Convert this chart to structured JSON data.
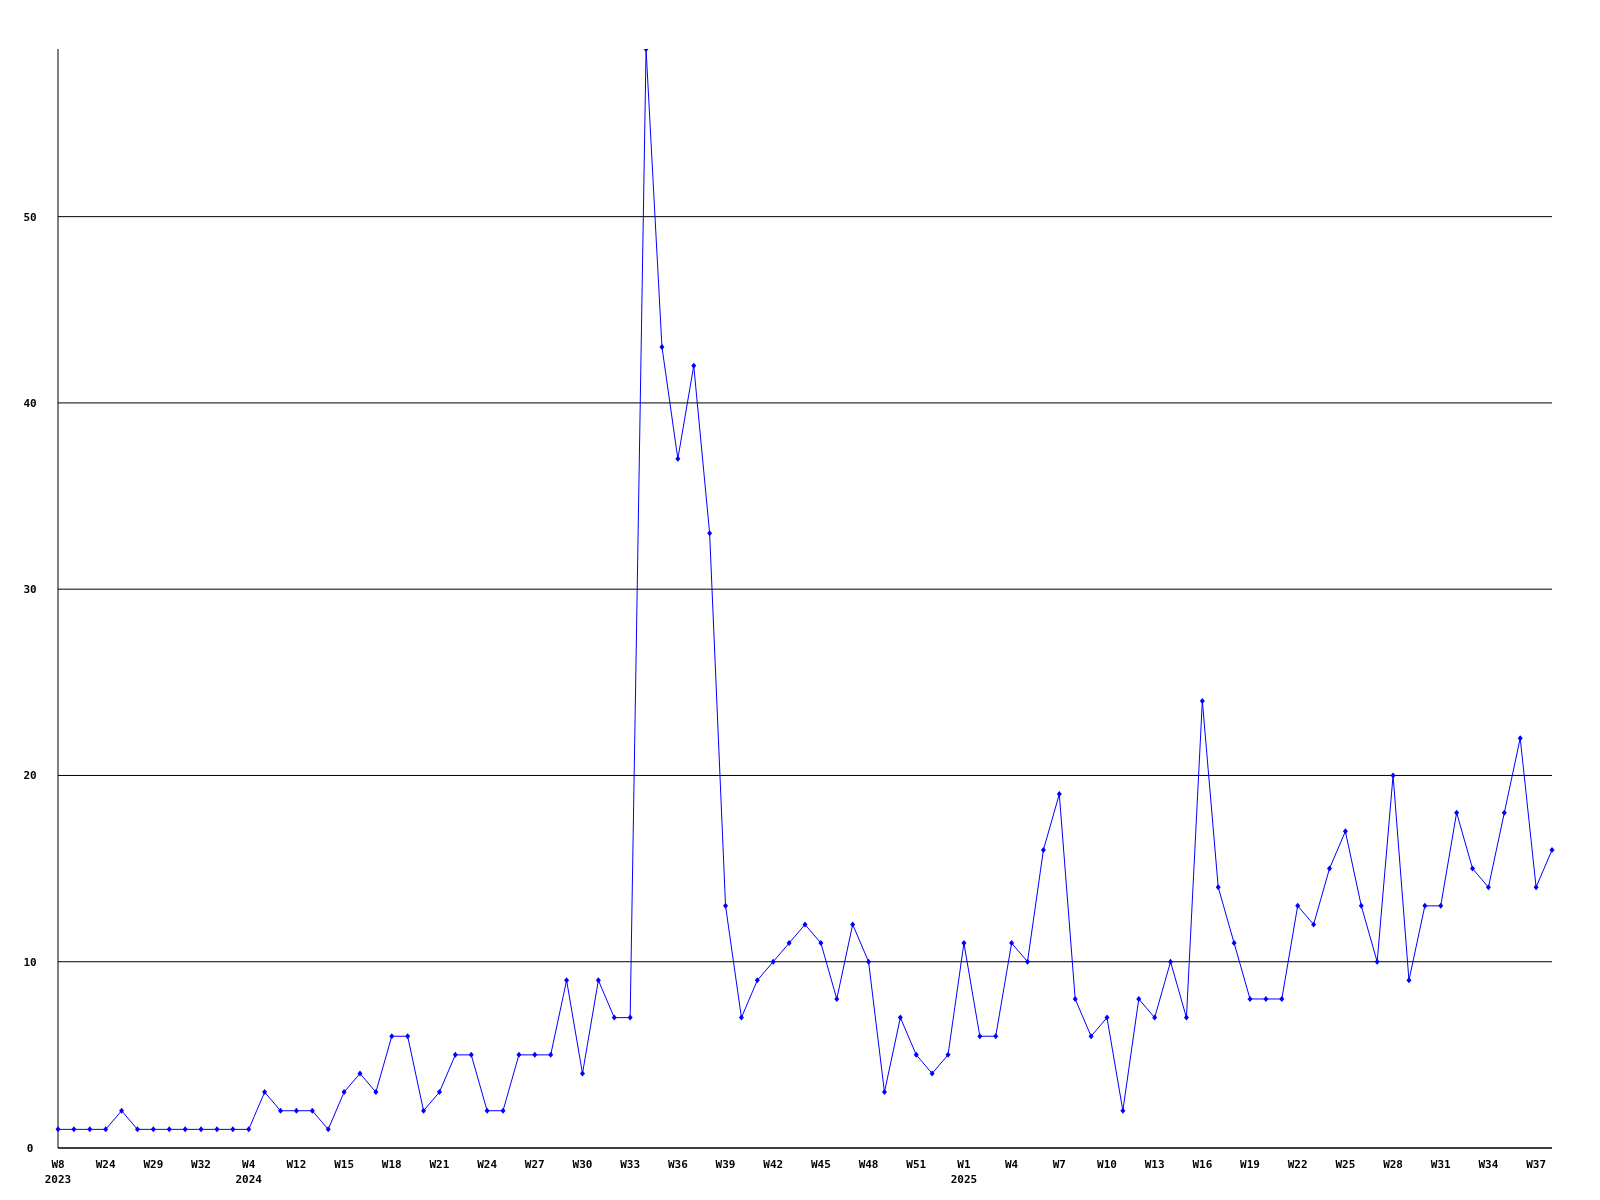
{
  "chart_data": {
    "type": "line",
    "categories": [
      "W8\n2023",
      null,
      null,
      "W24",
      null,
      null,
      "W29",
      null,
      null,
      "W32",
      null,
      null,
      "W4\n2024",
      null,
      null,
      "W12",
      null,
      null,
      "W15",
      null,
      null,
      "W18",
      null,
      null,
      "W21",
      null,
      null,
      "W24",
      null,
      null,
      "W27",
      null,
      null,
      "W30",
      null,
      null,
      "W33",
      null,
      null,
      "W36",
      null,
      null,
      "W39",
      null,
      null,
      "W42",
      null,
      null,
      "W45",
      null,
      null,
      "W48",
      null,
      null,
      "W51",
      null,
      null,
      "W1\n2025",
      null,
      null,
      "W4",
      null,
      null,
      "W7",
      null,
      null,
      "W10",
      null,
      null,
      "W13",
      null,
      null,
      "W16",
      null,
      null,
      "W19",
      null,
      null,
      "W22",
      null,
      null,
      "W25",
      null,
      null,
      "W28",
      null,
      null,
      "W31",
      null,
      null,
      "W34",
      null,
      null,
      "W37",
      null
    ],
    "series": [
      {
        "color": "#0000ff",
        "values": [
          1,
          1,
          1,
          1,
          2,
          1,
          1,
          1,
          1,
          1,
          1,
          1,
          1,
          3,
          2,
          2,
          2,
          1,
          3,
          4,
          3,
          6,
          6,
          2,
          3,
          5,
          5,
          2,
          2,
          5,
          5,
          5,
          9,
          4,
          9,
          7,
          7,
          59,
          43,
          37,
          42,
          33,
          13,
          7,
          9,
          10,
          11,
          12,
          11,
          8,
          12,
          10,
          3,
          7,
          5,
          4,
          5,
          11,
          6,
          6,
          11,
          10,
          16,
          19,
          8,
          6,
          7,
          2,
          8,
          7,
          10,
          7,
          24,
          14,
          11,
          8,
          8,
          8,
          13,
          12,
          15,
          17,
          13,
          10,
          20,
          9,
          13,
          13,
          18,
          15,
          14,
          18,
          22,
          14,
          16
        ]
      }
    ],
    "ylim": [
      0,
      59
    ],
    "yticks": [
      0,
      10,
      20,
      30,
      40,
      50
    ],
    "grid": "y",
    "marker": "diamond",
    "line_style": "solid",
    "legend": false
  }
}
